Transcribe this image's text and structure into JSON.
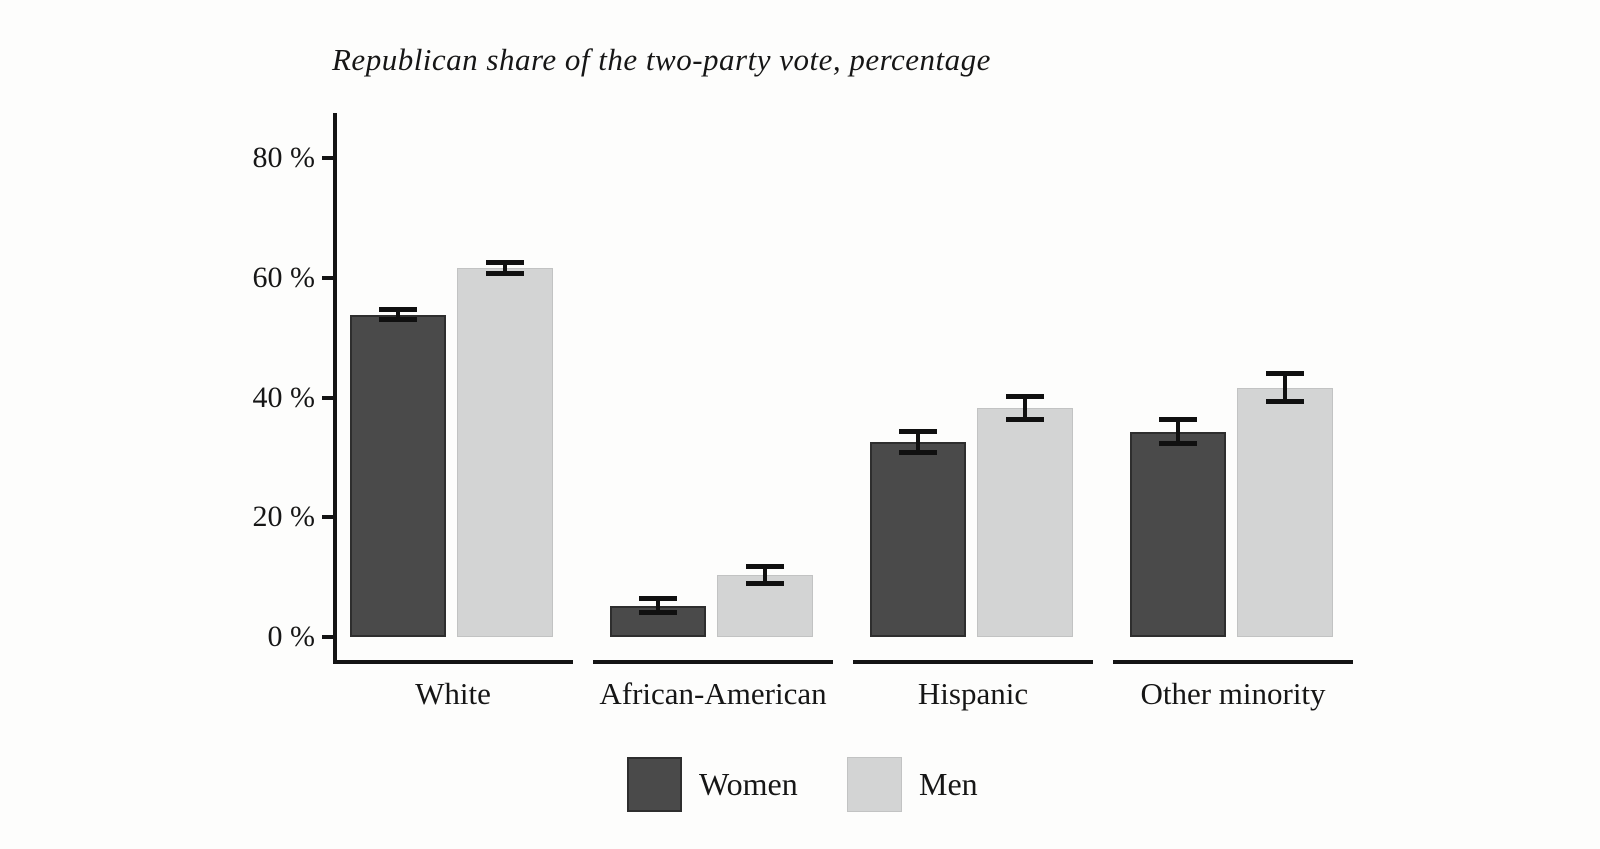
{
  "chart_data": {
    "type": "bar",
    "title": "Republican share of the two-party vote, percentage",
    "categories": [
      "White",
      "African-American",
      "Hispanic",
      "Other minority"
    ],
    "series": [
      {
        "name": "Women",
        "color": "#4a4a4a",
        "values": [
          53.8,
          5.2,
          32.6,
          34.3
        ],
        "errors": [
          0.6,
          0.9,
          1.5,
          1.8
        ]
      },
      {
        "name": "Men",
        "color": "#d3d4d4",
        "values": [
          61.6,
          10.4,
          38.3,
          41.6
        ],
        "errors": [
          0.7,
          1.2,
          1.7,
          2.1
        ]
      }
    ],
    "xlabel": "",
    "ylabel": "",
    "ylim": [
      0,
      87.5
    ],
    "yticks": [
      {
        "value": 0,
        "label": "0 %"
      },
      {
        "value": 20,
        "label": "20 %"
      },
      {
        "value": 40,
        "label": "40 %"
      },
      {
        "value": 60,
        "label": "60 %"
      },
      {
        "value": 80,
        "label": "80 %"
      }
    ],
    "grid": false,
    "error_bars": true,
    "legend_position": "bottom"
  },
  "colors": {
    "axis": "#141414",
    "text": "#161616",
    "women_bar": "#4a4a4a",
    "men_bar": "#d3d4d4",
    "background": "#fdfdfc"
  }
}
